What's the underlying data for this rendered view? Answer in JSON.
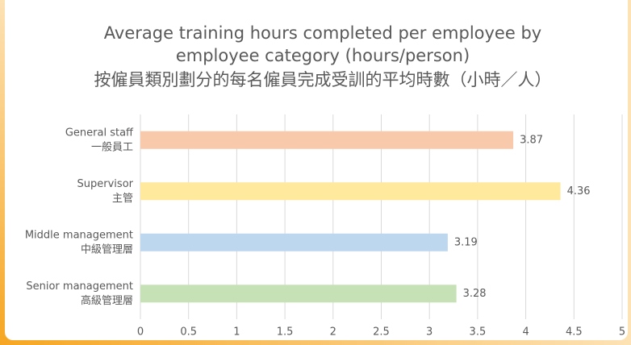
{
  "chart_data": {
    "type": "bar",
    "orientation": "horizontal",
    "title": [
      "Average training hours completed per employee by",
      "employee category (hours/person)"
    ],
    "subtitle": "按僱員類別劃分的每名僱員完成受訓的平均時數（小時／人）",
    "categories": [
      [
        "General staff",
        "一般員工"
      ],
      [
        "Supervisor",
        "主管"
      ],
      [
        "Middle management",
        "中級管理層"
      ],
      [
        "Senior management",
        "高級管理層"
      ]
    ],
    "values": [
      3.87,
      4.36,
      3.19,
      3.28
    ],
    "colors": [
      "#f8c9aa",
      "#fee99d",
      "#bdd7ee",
      "#c7e1b6"
    ],
    "xlim": [
      0,
      5
    ],
    "xticks": [
      0,
      0.5,
      1,
      1.5,
      2,
      2.5,
      3,
      3.5,
      4,
      4.5,
      5
    ],
    "grid": true
  }
}
